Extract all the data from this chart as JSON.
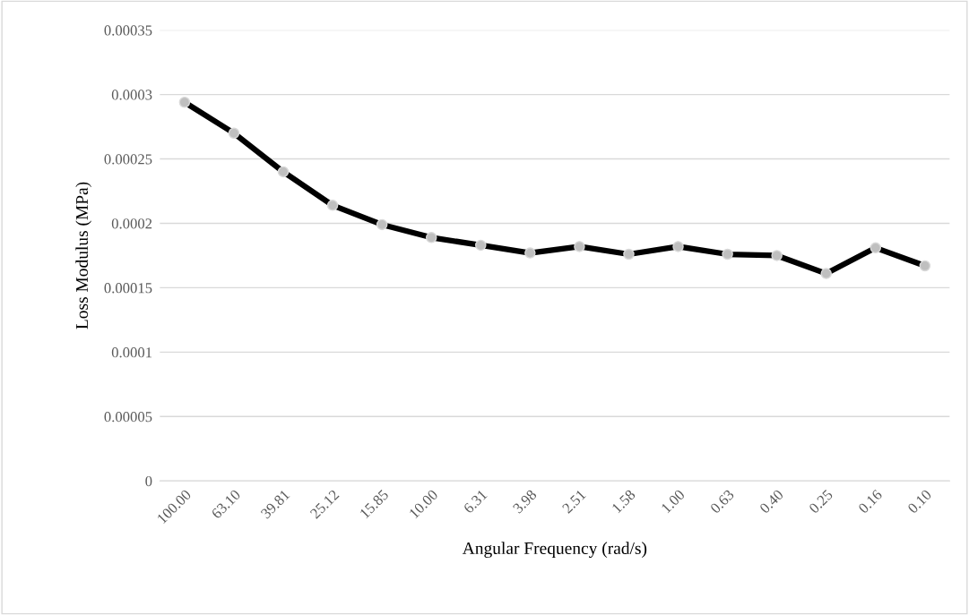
{
  "chart_data": {
    "type": "line",
    "xlabel": "Angular Frequency (rad/s)",
    "ylabel": "Loss Modulus (MPa)",
    "categories": [
      "100.00",
      "63.10",
      "39.81",
      "25.12",
      "15.85",
      "10.00",
      "6.31",
      "3.98",
      "2.51",
      "1.58",
      "1.00",
      "0.63",
      "0.40",
      "0.25",
      "0.16",
      "0.10"
    ],
    "series": [
      {
        "color": "#000000",
        "values": [
          0.000294,
          0.00027,
          0.00024,
          0.000214,
          0.000199,
          0.000189,
          0.000183,
          0.000177,
          0.000182,
          0.000176,
          0.000182,
          0.000176,
          0.000175,
          0.000161,
          0.000181,
          0.000167
        ]
      }
    ],
    "ylim": [
      0,
      0.00035
    ],
    "yticks": [
      0,
      {
        "value": 5e-05,
        "label": "0.00005"
      },
      {
        "value": 0.0001,
        "label": "0.0001"
      },
      {
        "value": 0.00015,
        "label": "0.00015"
      },
      {
        "value": 0.0002,
        "label": "0.0002"
      },
      {
        "value": 0.00025,
        "label": "0.00025"
      },
      {
        "value": 0.0003,
        "label": "0.0003"
      },
      {
        "value": 0.00035,
        "label": "0.00035"
      }
    ],
    "grid": "y",
    "marker": "circle",
    "line_style": "solid",
    "legend": false
  }
}
